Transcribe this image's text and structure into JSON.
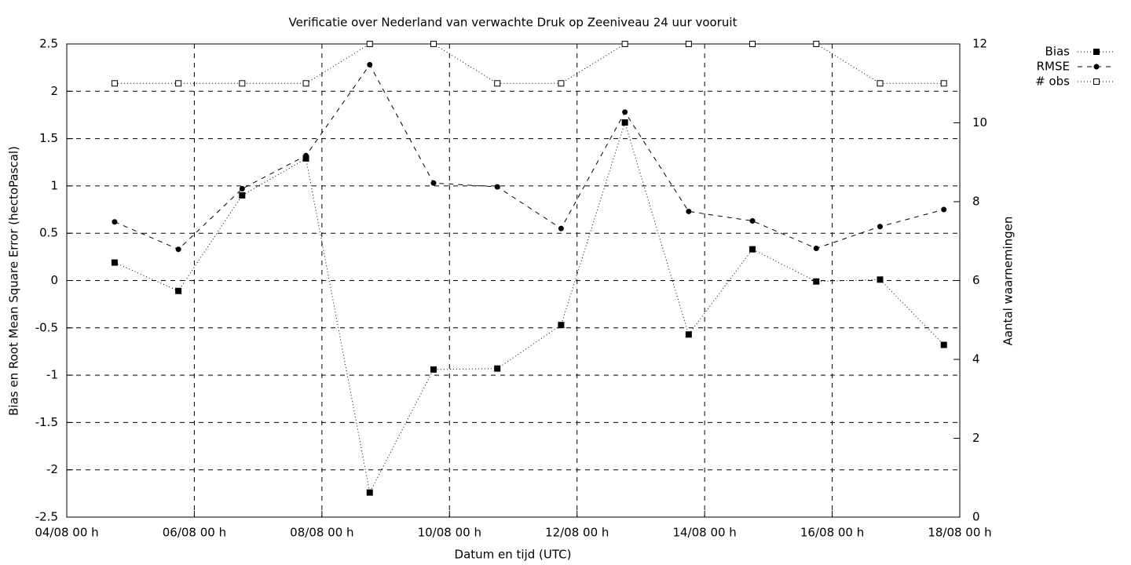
{
  "chart_data": {
    "type": "line",
    "title": "Verificatie over Nederland van verwachte Druk op Zeeniveau 24 uur vooruit",
    "x_label": "Datum en tijd (UTC)",
    "y_label": "Bias en Root Mean Square Error (hectoPascal)",
    "y2_label": "Aantal waarnemingen",
    "x": [
      "04/08 18 h",
      "05/08 18 h",
      "06/08 18 h",
      "07/08 18 h",
      "08/08 18 h",
      "09/08 18 h",
      "10/08 18 h",
      "11/08 18 h",
      "12/08 18 h",
      "13/08 18 h",
      "14/08 18 h",
      "15/08 18 h",
      "16/08 18 h",
      "17/08 18 h"
    ],
    "xlim": [
      "04/08 00 h",
      "18/08 00 h"
    ],
    "xticks": [
      "04/08 00 h",
      "06/08 00 h",
      "08/08 00 h",
      "10/08 00 h",
      "12/08 00 h",
      "14/08 00 h",
      "16/08 00 h",
      "18/08 00 h"
    ],
    "ylim": [
      -2.5,
      2.5
    ],
    "yticks": [
      -2.5,
      -2,
      -1.5,
      -1,
      -0.5,
      0,
      0.5,
      1,
      1.5,
      2,
      2.5
    ],
    "y2lim": [
      0,
      12
    ],
    "y2ticks": [
      0,
      2,
      4,
      6,
      8,
      10,
      12
    ],
    "grid": true,
    "legend": "top-right-outside",
    "series": [
      {
        "name": "Bias",
        "color": "#000000",
        "line_style": "dotted",
        "marker": "filled-square",
        "values": [
          0.19,
          -0.11,
          0.9,
          1.29,
          -2.24,
          -0.94,
          -0.93,
          -0.47,
          1.67,
          -0.57,
          0.33,
          -0.01,
          0.01,
          -0.68
        ]
      },
      {
        "name": "RMSE",
        "color": "#000000",
        "line_style": "dashed",
        "marker": "filled-circle",
        "values": [
          0.62,
          0.33,
          0.97,
          1.32,
          2.28,
          1.03,
          0.99,
          0.55,
          1.78,
          0.73,
          0.63,
          0.34,
          0.57,
          0.75
        ]
      },
      {
        "name": "# obs",
        "color": "#000000",
        "line_style": "dotted",
        "marker": "open-square",
        "axis": "y2",
        "values": [
          11,
          11,
          11,
          11,
          12,
          12,
          11,
          11,
          12,
          12,
          12,
          12,
          11,
          11
        ]
      }
    ]
  }
}
